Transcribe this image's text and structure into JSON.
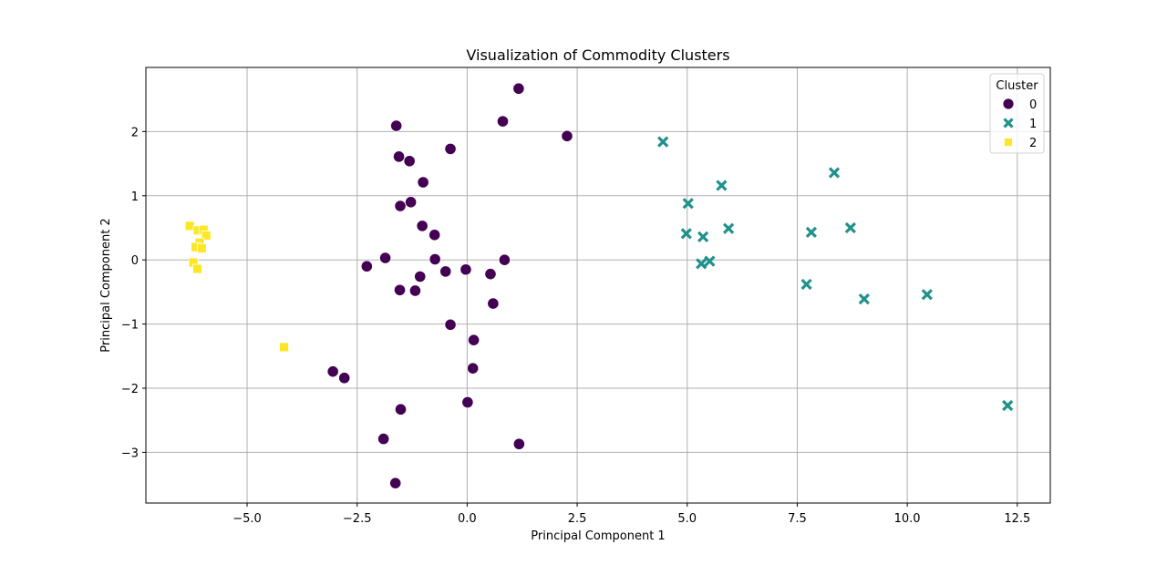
{
  "chart_data": {
    "type": "scatter",
    "title": "Visualization of Commodity Clusters",
    "xlabel": "Principal Component 1",
    "ylabel": "Principal Component 2",
    "xlim": [
      -7.3,
      13.25
    ],
    "ylim": [
      -3.79,
      3.0
    ],
    "xticks": [
      -5.0,
      -2.5,
      0.0,
      2.5,
      5.0,
      7.5,
      10.0,
      12.5
    ],
    "xtick_labels": [
      "−5.0",
      "−2.5",
      "0.0",
      "2.5",
      "5.0",
      "7.5",
      "10.0",
      "12.5"
    ],
    "yticks": [
      -3,
      -2,
      -1,
      0,
      1,
      2
    ],
    "ytick_labels": [
      "−3",
      "−2",
      "−1",
      "0",
      "1",
      "2"
    ],
    "grid": true,
    "legend": {
      "title": "Cluster",
      "placement": "top-right",
      "entries": [
        "0",
        "1",
        "2"
      ]
    },
    "series": [
      {
        "name": "0",
        "marker": "circle",
        "color": "#440154",
        "points": [
          [
            1.17,
            2.67
          ],
          [
            0.81,
            2.16
          ],
          [
            2.27,
            1.93
          ],
          [
            -1.61,
            2.09
          ],
          [
            -0.38,
            1.73
          ],
          [
            -1.55,
            1.61
          ],
          [
            -1.31,
            1.54
          ],
          [
            -1.0,
            1.21
          ],
          [
            -1.52,
            0.84
          ],
          [
            -1.28,
            0.9
          ],
          [
            -1.02,
            0.53
          ],
          [
            -0.74,
            0.39
          ],
          [
            -1.86,
            0.03
          ],
          [
            -0.73,
            0.01
          ],
          [
            0.85,
            0.0
          ],
          [
            -2.28,
            -0.1
          ],
          [
            -0.49,
            -0.18
          ],
          [
            -0.03,
            -0.15
          ],
          [
            -1.07,
            -0.26
          ],
          [
            0.53,
            -0.22
          ],
          [
            -1.53,
            -0.47
          ],
          [
            -1.18,
            -0.48
          ],
          [
            0.59,
            -0.68
          ],
          [
            -0.38,
            -1.01
          ],
          [
            0.15,
            -1.25
          ],
          [
            -3.05,
            -1.74
          ],
          [
            -2.79,
            -1.84
          ],
          [
            0.13,
            -1.69
          ],
          [
            0.01,
            -2.22
          ],
          [
            -1.51,
            -2.33
          ],
          [
            -1.9,
            -2.79
          ],
          [
            1.18,
            -2.87
          ],
          [
            -1.63,
            -3.48
          ]
        ]
      },
      {
        "name": "1",
        "marker": "x",
        "color": "#21918c",
        "points": [
          [
            4.45,
            1.84
          ],
          [
            8.34,
            1.36
          ],
          [
            5.78,
            1.16
          ],
          [
            5.02,
            0.88
          ],
          [
            4.98,
            0.41
          ],
          [
            5.36,
            0.36
          ],
          [
            5.94,
            0.49
          ],
          [
            7.82,
            0.43
          ],
          [
            8.71,
            0.5
          ],
          [
            5.32,
            -0.06
          ],
          [
            5.51,
            -0.02
          ],
          [
            7.71,
            -0.38
          ],
          [
            9.02,
            -0.61
          ],
          [
            10.45,
            -0.54
          ],
          [
            12.28,
            -2.27
          ]
        ]
      },
      {
        "name": "2",
        "marker": "square",
        "color": "#fde725",
        "points": [
          [
            -6.3,
            0.53
          ],
          [
            -6.12,
            0.46
          ],
          [
            -5.99,
            0.47
          ],
          [
            -5.93,
            0.38
          ],
          [
            -6.08,
            0.27
          ],
          [
            -6.17,
            0.2
          ],
          [
            -6.03,
            0.18
          ],
          [
            -6.22,
            -0.04
          ],
          [
            -6.13,
            -0.14
          ],
          [
            -4.16,
            -1.36
          ]
        ]
      }
    ]
  }
}
